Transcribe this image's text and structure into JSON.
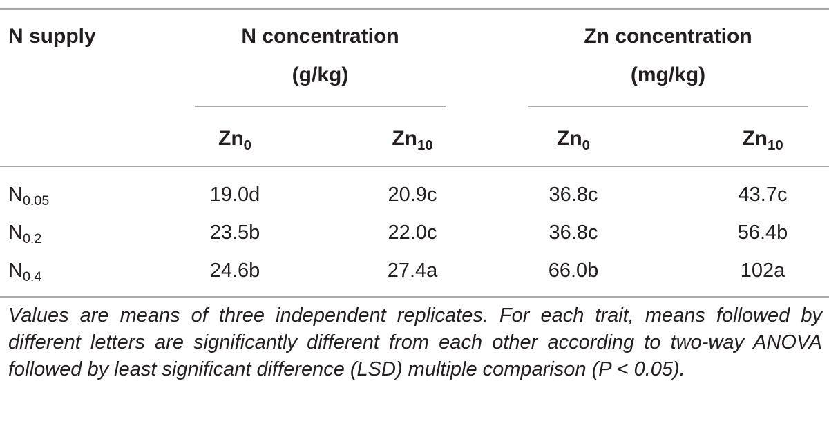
{
  "table": {
    "headers": {
      "row_label": "N supply",
      "groups": [
        {
          "line1": "N concentration",
          "line2": "(g/kg)"
        },
        {
          "line1": "Zn concentration",
          "line2": "(mg/kg)"
        }
      ],
      "subcolumns": [
        {
          "base": "Zn",
          "sub": "0"
        },
        {
          "base": "Zn",
          "sub": "10"
        },
        {
          "base": "Zn",
          "sub": "0"
        },
        {
          "base": "Zn",
          "sub": "10"
        }
      ]
    },
    "rows": [
      {
        "label_base": "N",
        "label_sub": "0.05",
        "values": [
          "19.0d",
          "20.9c",
          "36.8c",
          "43.7c"
        ]
      },
      {
        "label_base": "N",
        "label_sub": "0.2",
        "values": [
          "23.5b",
          "22.0c",
          "36.8c",
          "56.4b"
        ]
      },
      {
        "label_base": "N",
        "label_sub": "0.4",
        "values": [
          "24.6b",
          "27.4a",
          "66.0b",
          "102a"
        ]
      }
    ]
  },
  "caption": "Values are means of three independent replicates. For each trait, means followed by different letters are significantly different from each other according to two-way ANOVA followed by least significant difference (LSD) multiple comparison (P < 0.05)."
}
